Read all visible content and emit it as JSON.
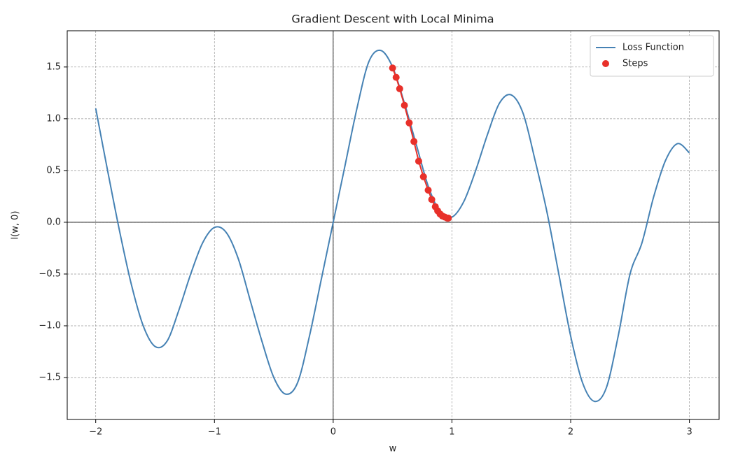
{
  "chart_data": {
    "type": "line",
    "title": "Gradient Descent with Local Minima",
    "xlabel": "w",
    "ylabel": "l(w, 0)",
    "xlim": [
      -2.24,
      3.25
    ],
    "ylim": [
      -1.905,
      1.85
    ],
    "xticks": [
      {
        "value": -2,
        "label": "−2"
      },
      {
        "value": -1,
        "label": "−1"
      },
      0,
      1,
      2,
      3
    ],
    "yticks": [
      {
        "value": -1.5,
        "label": "−1.5"
      },
      {
        "value": -1.0,
        "label": "−1.0"
      },
      {
        "value": -0.5,
        "label": "−0.5"
      },
      {
        "value": 0,
        "label": "0.0"
      },
      0.5,
      {
        "value": 1.0,
        "label": "1.0"
      },
      1.5
    ],
    "grid": true,
    "legend": "upper right",
    "series": [
      {
        "name": "Loss Function",
        "color": "#4682b4",
        "x": [
          -2.0,
          -1.9,
          -1.8,
          -1.7,
          -1.6,
          -1.5,
          -1.4,
          -1.3,
          -1.2,
          -1.1,
          -1.0,
          -0.9,
          -0.8,
          -0.7,
          -0.6,
          -0.5,
          -0.4,
          -0.3,
          -0.2,
          -0.1,
          0.0,
          0.1,
          0.2,
          0.3,
          0.4,
          0.5,
          0.6,
          0.7,
          0.8,
          0.9,
          1.0,
          1.1,
          1.2,
          1.3,
          1.4,
          1.5,
          1.6,
          1.7,
          1.8,
          1.9,
          2.0,
          2.1,
          2.2,
          2.3,
          2.4,
          2.5,
          2.6,
          2.7,
          2.8,
          2.9,
          3.0
        ],
        "values": [
          1.1,
          0.5,
          -0.08,
          -0.6,
          -1.0,
          -1.2,
          -1.15,
          -0.85,
          -0.5,
          -0.2,
          -0.05,
          -0.1,
          -0.35,
          -0.75,
          -1.15,
          -1.5,
          -1.66,
          -1.55,
          -1.1,
          -0.55,
          0.0,
          0.55,
          1.1,
          1.55,
          1.66,
          1.5,
          1.15,
          0.75,
          0.35,
          0.1,
          0.05,
          0.2,
          0.5,
          0.85,
          1.15,
          1.23,
          1.05,
          0.6,
          0.1,
          -0.5,
          -1.1,
          -1.55,
          -1.73,
          -1.6,
          -1.1,
          -0.5,
          -0.2,
          0.25,
          0.6,
          0.76,
          0.67
        ]
      },
      {
        "name": "Steps",
        "color": "#e8302a",
        "type": "scatter",
        "x": [
          0.5,
          0.53,
          0.56,
          0.6,
          0.64,
          0.68,
          0.72,
          0.76,
          0.8,
          0.83,
          0.86,
          0.88,
          0.9,
          0.92,
          0.94,
          0.96,
          0.97
        ],
        "values": [
          1.49,
          1.4,
          1.29,
          1.13,
          0.96,
          0.78,
          0.59,
          0.44,
          0.31,
          0.22,
          0.15,
          0.11,
          0.08,
          0.06,
          0.05,
          0.04,
          0.04
        ]
      }
    ]
  }
}
